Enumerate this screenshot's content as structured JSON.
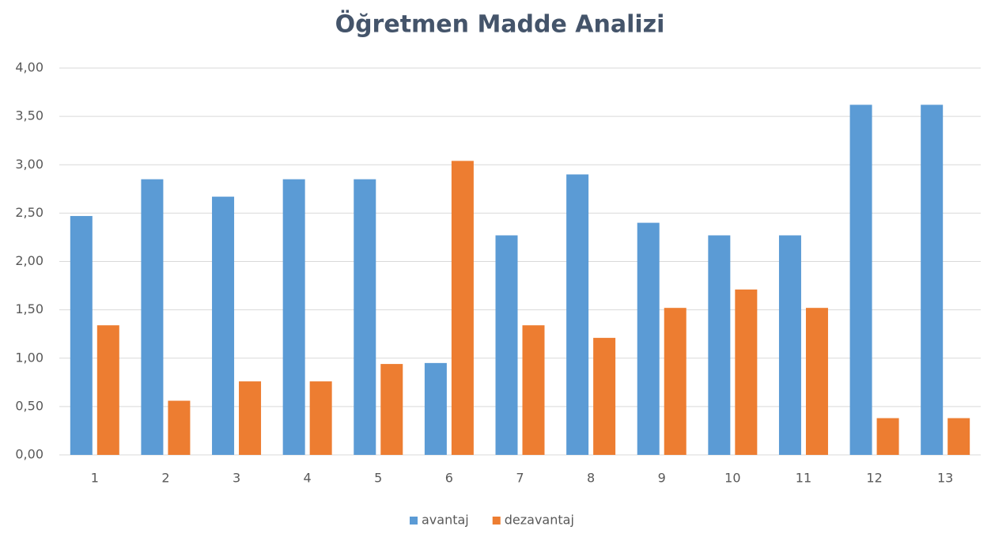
{
  "chart_data": {
    "type": "bar",
    "title": "Öğretmen Madde Analizi",
    "categories": [
      "1",
      "2",
      "3",
      "4",
      "5",
      "6",
      "7",
      "8",
      "9",
      "10",
      "11",
      "12",
      "13"
    ],
    "series": [
      {
        "name": "avantaj",
        "color": "#5b9bd5",
        "values": [
          2.47,
          2.85,
          2.67,
          2.85,
          2.85,
          0.95,
          2.27,
          2.9,
          2.4,
          2.27,
          2.27,
          3.62,
          3.62
        ]
      },
      {
        "name": "dezavantaj",
        "color": "#ed7d31",
        "values": [
          1.34,
          0.56,
          0.76,
          0.76,
          0.94,
          3.04,
          1.34,
          1.21,
          1.52,
          1.71,
          1.52,
          0.38,
          0.38
        ]
      }
    ],
    "ylim": [
      0,
      4
    ],
    "yticks": [
      {
        "value": 0,
        "label": "0,00"
      },
      {
        "value": 0.5,
        "label": "0,50"
      },
      {
        "value": 1,
        "label": "1,00"
      },
      {
        "value": 1.5,
        "label": "1,50"
      },
      {
        "value": 2,
        "label": "2,00"
      },
      {
        "value": 2.5,
        "label": "2,50"
      },
      {
        "value": 3,
        "label": "3,00"
      },
      {
        "value": 3.5,
        "label": "3,50"
      },
      {
        "value": 4,
        "label": "4,00"
      }
    ],
    "grid": true,
    "legend": "bottom"
  }
}
